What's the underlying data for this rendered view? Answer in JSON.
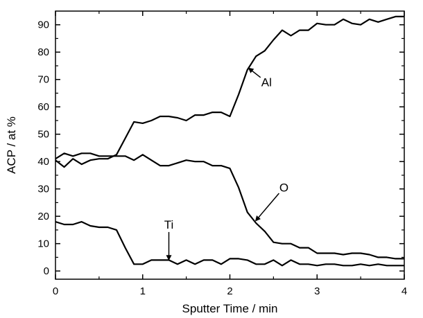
{
  "chart_data": {
    "type": "line",
    "title": "",
    "xlabel": "Sputter Time / min",
    "ylabel": "ACP / at %",
    "xlim": [
      0,
      4
    ],
    "ylim": [
      -3,
      95
    ],
    "x_ticks": [
      "0",
      "1",
      "2",
      "3",
      "4"
    ],
    "y_ticks": [
      "0",
      "10",
      "20",
      "30",
      "40",
      "50",
      "60",
      "70",
      "80",
      "90"
    ],
    "grid": false,
    "legend": "none",
    "line_color": "#000000",
    "series": [
      {
        "name": "Al",
        "x": [
          0,
          0.1,
          0.2,
          0.3,
          0.4,
          0.5,
          0.6,
          0.7,
          0.8,
          0.9,
          1.0,
          1.1,
          1.2,
          1.3,
          1.4,
          1.5,
          1.6,
          1.7,
          1.8,
          1.9,
          2.0,
          2.1,
          2.2,
          2.3,
          2.4,
          2.5,
          2.6,
          2.7,
          2.8,
          2.9,
          3.0,
          3.1,
          3.2,
          3.3,
          3.4,
          3.5,
          3.6,
          3.7,
          3.8,
          3.9,
          4.0
        ],
        "y": [
          40.5,
          38,
          41,
          39,
          40.5,
          41,
          41,
          42.5,
          48.5,
          54.5,
          54,
          55,
          56.5,
          56.5,
          56,
          55,
          57,
          57,
          58,
          58,
          56.5,
          64.5,
          73.5,
          78.5,
          80.5,
          84.5,
          88,
          86,
          88,
          88,
          90.5,
          90,
          90,
          92,
          90.5,
          90,
          92,
          91,
          92,
          93,
          93
        ]
      },
      {
        "name": "O",
        "x": [
          0,
          0.1,
          0.2,
          0.3,
          0.4,
          0.5,
          0.6,
          0.7,
          0.8,
          0.9,
          1.0,
          1.1,
          1.2,
          1.3,
          1.4,
          1.5,
          1.6,
          1.7,
          1.8,
          1.9,
          2.0,
          2.1,
          2.2,
          2.3,
          2.4,
          2.5,
          2.6,
          2.7,
          2.8,
          2.9,
          3.0,
          3.1,
          3.2,
          3.3,
          3.4,
          3.5,
          3.6,
          3.7,
          3.8,
          3.9,
          4.0
        ],
        "y": [
          41,
          43,
          42,
          43,
          43,
          42,
          42,
          42,
          42,
          40.5,
          42.5,
          40.5,
          38.5,
          38.5,
          39.5,
          40.5,
          40,
          40,
          38.5,
          38.5,
          37.5,
          30.5,
          21.5,
          17.5,
          14.5,
          10.5,
          10,
          10,
          8.5,
          8.5,
          6.5,
          6.5,
          6.5,
          6,
          6.5,
          6.5,
          6,
          5,
          5,
          4.5,
          4.5
        ]
      },
      {
        "name": "Ti",
        "x": [
          0,
          0.1,
          0.2,
          0.3,
          0.4,
          0.5,
          0.6,
          0.7,
          0.8,
          0.9,
          1.0,
          1.1,
          1.2,
          1.3,
          1.4,
          1.5,
          1.6,
          1.7,
          1.8,
          1.9,
          2.0,
          2.1,
          2.2,
          2.3,
          2.4,
          2.5,
          2.6,
          2.7,
          2.8,
          2.9,
          3.0,
          3.1,
          3.2,
          3.3,
          3.4,
          3.5,
          3.6,
          3.7,
          3.8,
          3.9,
          4.0
        ],
        "y": [
          18,
          17,
          17,
          18,
          16.5,
          16,
          16,
          15,
          8.5,
          2.5,
          2.5,
          4,
          4,
          4,
          2.5,
          4,
          2.5,
          4,
          4,
          2.5,
          4.5,
          4.5,
          4,
          2.5,
          2.5,
          4,
          2,
          4,
          2.5,
          2.5,
          2,
          2.5,
          2.5,
          2,
          2,
          2.5,
          2,
          2.5,
          2,
          2,
          2
        ]
      }
    ],
    "annotations": [
      {
        "text": "Al",
        "x": 2.42,
        "y": 67.5,
        "arrow_to": [
          2.22,
          74
        ]
      },
      {
        "text": "O",
        "x": 2.62,
        "y": 29,
        "arrow_to": [
          2.3,
          18.5
        ]
      },
      {
        "text": "Ti",
        "x": 1.3,
        "y": 15.5,
        "arrow_to": [
          1.3,
          4.3
        ]
      }
    ]
  }
}
